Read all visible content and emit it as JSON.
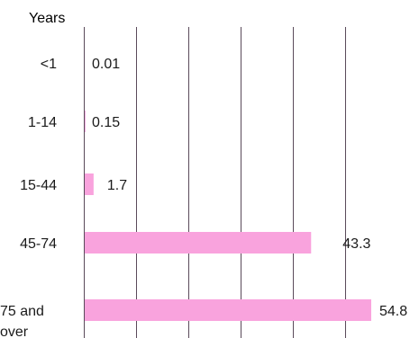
{
  "chart_data": {
    "type": "bar",
    "orientation": "horizontal",
    "ylabel": "Years",
    "categories": [
      "<1",
      "1-14",
      "15-44",
      "45-74",
      "75 and over"
    ],
    "values": [
      0.01,
      0.15,
      1.7,
      43.3,
      54.8
    ],
    "data_labels": [
      "0.01",
      "0.15",
      "1.7",
      "43.3",
      "54.8"
    ],
    "xlim": [
      0,
      60
    ],
    "grid": "vertical",
    "legend": "none",
    "colors": {
      "bar": "#F9A3DD",
      "grid": "#5a4a5a",
      "text": "#1a1a1a"
    }
  }
}
